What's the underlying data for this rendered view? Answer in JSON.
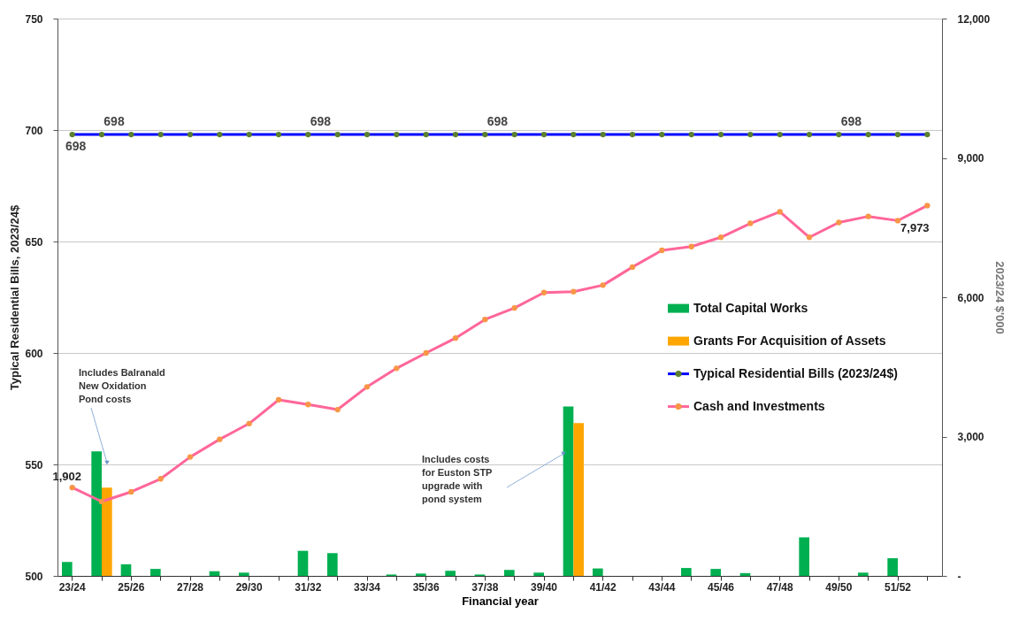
{
  "chart_data": {
    "type": "bar",
    "xlabel": "Financial year",
    "ylabel": "Typical Residential Bills, 2023/24$",
    "y2label": "2023/24 $'000",
    "categories": [
      "23/24",
      null,
      "25/26",
      null,
      "27/28",
      null,
      "29/30",
      null,
      "31/32",
      null,
      "33/34",
      null,
      "35/36",
      null,
      "37/38",
      null,
      "39/40",
      null,
      "41/42",
      null,
      "43/44",
      null,
      "45/46",
      null,
      "47/48",
      null,
      "49/50",
      null,
      "51/52",
      null
    ],
    "ylim": [
      500,
      750
    ],
    "yticks": [
      500,
      550,
      600,
      650,
      700,
      750
    ],
    "y2lim": [
      0,
      12000
    ],
    "y2ticks": [
      {
        "value": 0,
        "label": "-"
      },
      {
        "value": 3000,
        "label": "3,000"
      },
      {
        "value": 6000,
        "label": "6,000"
      },
      {
        "value": 9000,
        "label": "9,000"
      },
      {
        "value": 12000,
        "label": "12,000"
      }
    ],
    "grid": "y",
    "legend": "right",
    "marker": "circle",
    "line_style": "solid",
    "annotations": [
      "Includes Balranald\nNew Oxidation\nPond  costs",
      "Includes costs\nfor Euston  STP\nupgrade with\npond system"
    ],
    "series": [
      {
        "name": "Total Capital Works",
        "axis": "y2",
        "color": "#00b050",
        "values": [
          300,
          2680,
          250,
          150,
          0,
          100,
          70,
          0,
          540,
          490,
          0,
          30,
          50,
          110,
          30,
          130,
          70,
          3650,
          160,
          0,
          0,
          170,
          150,
          60,
          0,
          830,
          0,
          70,
          380,
          0
        ]
      },
      {
        "name": "Grants For Acquisition of Assets",
        "axis": "y2",
        "color": "#ffa500",
        "values": [
          null,
          1900,
          null,
          null,
          null,
          null,
          null,
          null,
          null,
          null,
          null,
          null,
          null,
          null,
          null,
          null,
          null,
          3290,
          null,
          null,
          null,
          null,
          null,
          null,
          null,
          null,
          null,
          null,
          null,
          null
        ]
      },
      {
        "name": "Typical Residential Bills (2023/24$)",
        "type": "line",
        "color": "#0000ff",
        "values": [
          698,
          698,
          698,
          698,
          698,
          698,
          698,
          698,
          698,
          698,
          698,
          698,
          698,
          698,
          698,
          698,
          698,
          698,
          698,
          698,
          698,
          698,
          698,
          698,
          698,
          698,
          698,
          698,
          698,
          698
        ],
        "value_labels": [
          "698",
          "698",
          null,
          null,
          null,
          null,
          null,
          null,
          "698",
          null,
          null,
          null,
          null,
          null,
          "698",
          null,
          null,
          null,
          null,
          null,
          null,
          null,
          null,
          null,
          null,
          null,
          "698",
          null,
          null,
          null
        ]
      },
      {
        "name": "Cash and Investments",
        "type": "line",
        "axis": "y2",
        "color": "#ff6699",
        "values": [
          1902,
          1600,
          1810,
          2090,
          2560,
          2940,
          3280,
          3790,
          3690,
          3580,
          4070,
          4470,
          4800,
          5120,
          5520,
          5770,
          6100,
          6120,
          6260,
          6650,
          7010,
          7090,
          7290,
          7590,
          7840,
          7290,
          7610,
          7740,
          7650,
          7973
        ],
        "value_labels": [
          "1,902",
          null,
          null,
          null,
          null,
          null,
          null,
          null,
          null,
          null,
          null,
          null,
          null,
          null,
          null,
          null,
          null,
          null,
          null,
          null,
          null,
          null,
          null,
          null,
          null,
          null,
          null,
          null,
          null,
          "7,973"
        ]
      }
    ]
  }
}
